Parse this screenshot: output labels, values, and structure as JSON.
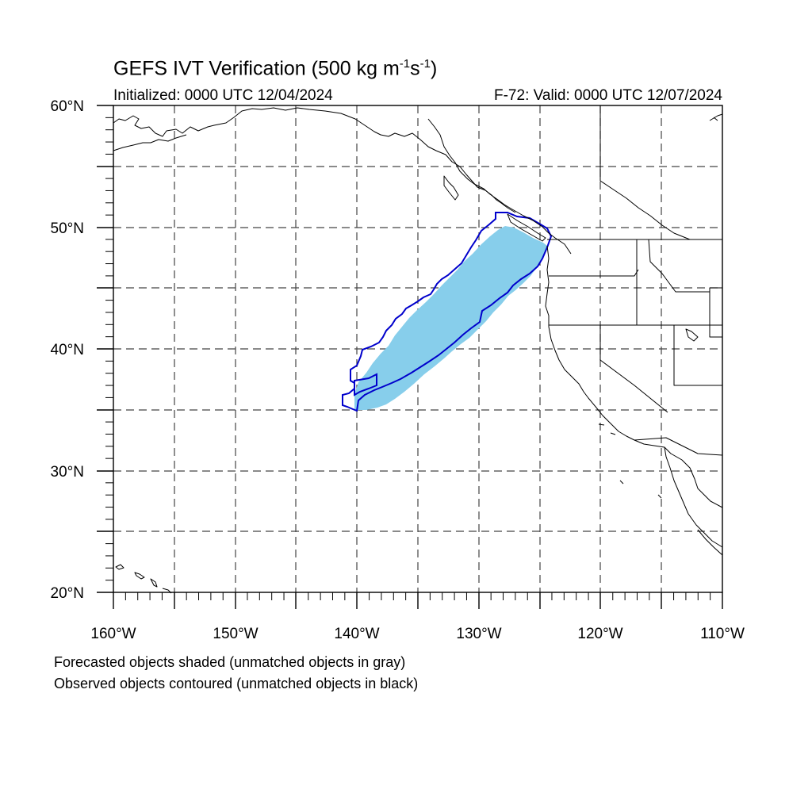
{
  "title": {
    "text": "GEFS IVT Verification (500 kg m",
    "exp1": "-1",
    "mid": "s",
    "exp2": "-1",
    "end": ")"
  },
  "initialized": "Initialized: 0000 UTC 12/04/2024",
  "valid": "F-72: Valid: 0000 UTC 12/07/2024",
  "footer": {
    "line1": "Forecasted objects shaded (unmatched objects in gray)",
    "line2": "Observed objects contoured (unmatched objects in black)"
  },
  "map": {
    "lon_range": [
      -160,
      -110
    ],
    "lat_range": [
      20,
      60
    ],
    "lon_labels": [
      "160°W",
      "150°W",
      "140°W",
      "130°W",
      "120°W",
      "110°W"
    ],
    "lat_labels": [
      "20°N",
      "30°N",
      "40°N",
      "50°N",
      "60°N"
    ],
    "grid_interval_deg": 5,
    "colors": {
      "forecast_shade": "#87ceeb",
      "observed_contour": "#0000cc",
      "coastline": "#000000",
      "grid": "#444444"
    }
  }
}
